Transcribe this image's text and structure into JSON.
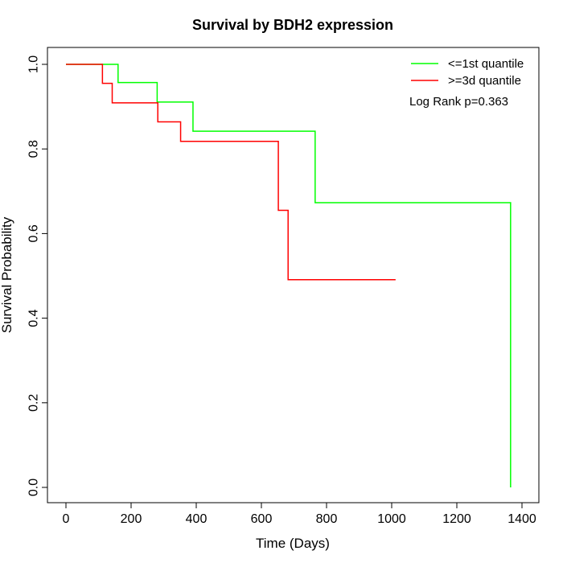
{
  "chart_data": {
    "type": "line",
    "title": "Survival by BDH2 expression",
    "xlabel": "Time (Days)",
    "ylabel": "Survival Probability",
    "xlim": [
      0,
      1400
    ],
    "ylim": [
      0,
      1.0
    ],
    "x_ticks": [
      0,
      200,
      400,
      600,
      800,
      1000,
      1200,
      1400
    ],
    "y_ticks": [
      "0.0",
      "0.2",
      "0.4",
      "0.6",
      "0.8",
      "1.0"
    ],
    "grid": false,
    "legend_position": "top-right",
    "annotation": "Log Rank p=0.363",
    "series": [
      {
        "name": "<=1st quantile",
        "color": "#00ff00",
        "step": true,
        "x": [
          0,
          160,
          280,
          390,
          765,
          1365,
          1365
        ],
        "y": [
          1.0,
          0.957,
          0.911,
          0.842,
          0.673,
          0.673,
          0.0
        ]
      },
      {
        "name": ">=3d quantile",
        "color": "#ff0000",
        "step": true,
        "x": [
          0,
          112,
          142,
          282,
          352,
          652,
          682,
          1012
        ],
        "y": [
          1.0,
          0.955,
          0.909,
          0.864,
          0.818,
          0.655,
          0.491,
          0.491
        ]
      }
    ]
  }
}
